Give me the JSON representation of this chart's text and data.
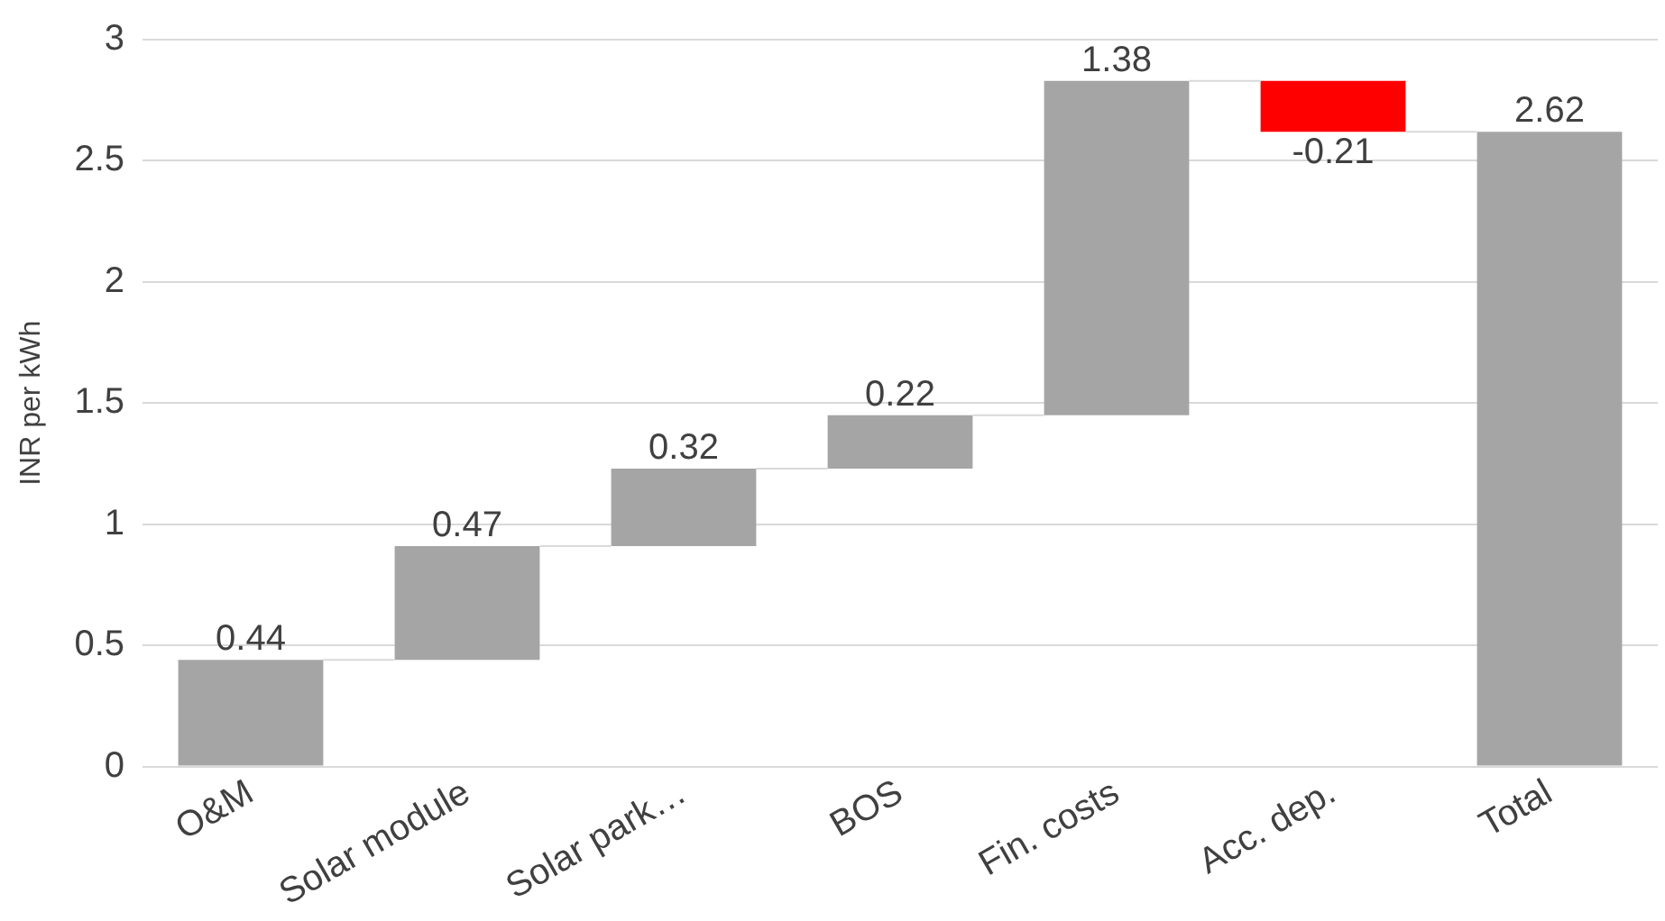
{
  "chart_data": {
    "type": "bar",
    "ylabel": "INR per kWh",
    "categories": [
      "O&M",
      "Solar module",
      "Solar park…",
      "BOS",
      "Fin. costs",
      "Acc. dep.",
      "Total"
    ],
    "values": [
      0.44,
      0.47,
      0.32,
      0.22,
      1.38,
      -0.21,
      2.62
    ],
    "base": [
      0,
      0.44,
      0.91,
      1.23,
      1.45,
      2.83,
      0
    ],
    "colors": [
      "#a5a5a5",
      "#a5a5a5",
      "#a5a5a5",
      "#a5a5a5",
      "#a5a5a5",
      "#ff0000",
      "#a5a5a5"
    ],
    "ylim": [
      0,
      3
    ],
    "yticks": [
      0,
      0.5,
      1,
      1.5,
      2,
      2.5,
      3
    ],
    "grid": "y",
    "data_labels": true,
    "legend": false
  }
}
